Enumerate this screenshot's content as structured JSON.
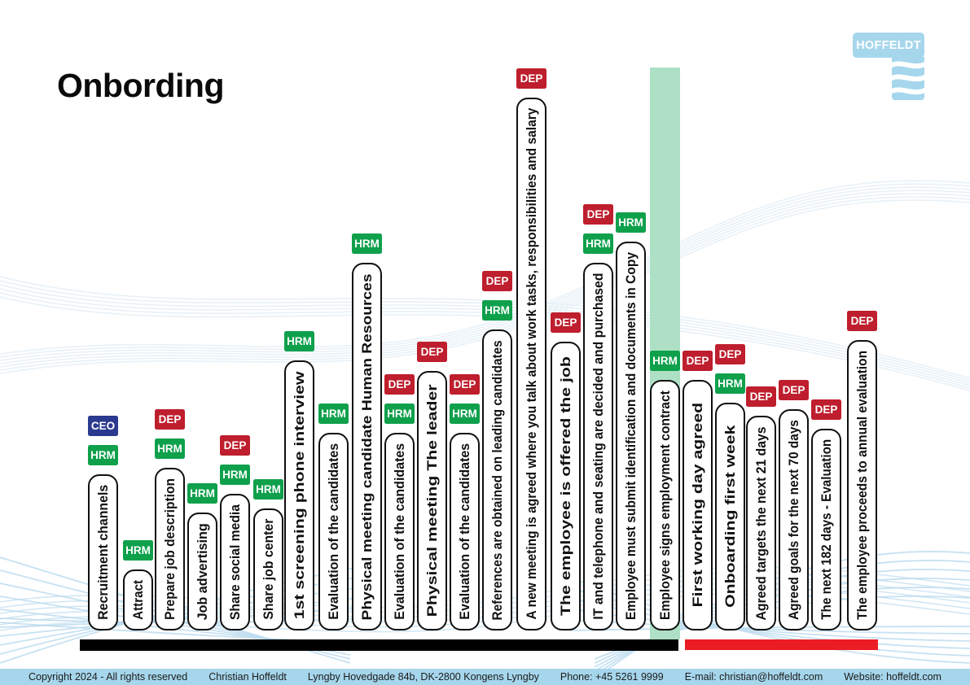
{
  "title": "Onbording",
  "logo": {
    "text": "HOFFELDT"
  },
  "colors": {
    "hrm": "#0FA04C",
    "dep": "#BE1E2D",
    "ceo": "#2B3A8F",
    "highlight_column": "#AEE0C6",
    "phase1_bar": "#000000",
    "phase2_bar": "#EC1C24",
    "brand_blue": "#A6D6EC"
  },
  "steps": [
    {
      "label": "Recruitment channels",
      "badges": [
        "CEO",
        "HRM"
      ],
      "highlight": false
    },
    {
      "label": "Attract",
      "badges": [
        "HRM"
      ],
      "highlight": false
    },
    {
      "label": "Prepare job description",
      "badges": [
        "DEP",
        "HRM"
      ],
      "highlight": false
    },
    {
      "label": "Job advertising",
      "badges": [
        "HRM"
      ],
      "highlight": false
    },
    {
      "label": "Share social media",
      "badges": [
        "DEP",
        "HRM"
      ],
      "highlight": false
    },
    {
      "label": "Share job center",
      "badges": [
        "HRM"
      ],
      "highlight": false
    },
    {
      "label": "1st screening phone interview",
      "badges": [
        "HRM"
      ],
      "highlight": false
    },
    {
      "label": "Evaluation of the candidates",
      "badges": [
        "HRM"
      ],
      "highlight": false
    },
    {
      "label": "Physical meeting candidate Human Resources",
      "badges": [
        "HRM"
      ],
      "highlight": false
    },
    {
      "label": "Evaluation of the candidates",
      "badges": [
        "DEP",
        "HRM"
      ],
      "highlight": false
    },
    {
      "label": "Physical meeting The leader",
      "badges": [
        "DEP"
      ],
      "highlight": false
    },
    {
      "label": "Evaluation of the candidates",
      "badges": [
        "DEP",
        "HRM"
      ],
      "highlight": false
    },
    {
      "label": "References are obtained on leading candidates",
      "badges": [
        "DEP",
        "HRM"
      ],
      "highlight": false
    },
    {
      "label": "A new meeting is agreed where you talk about work tasks, responsibilities and salary",
      "badges": [
        "DEP"
      ],
      "highlight": false
    },
    {
      "label": "The employee is offered the job",
      "badges": [
        "DEP"
      ],
      "highlight": false
    },
    {
      "label": "IT and telephone and seating are decided and purchased",
      "badges": [
        "DEP",
        "HRM"
      ],
      "highlight": false
    },
    {
      "label": "Employee must submit identification and documents in Copy",
      "badges": [
        "HRM"
      ],
      "highlight": false
    },
    {
      "label": "Employee signs employment contract",
      "badges": [
        "HRM"
      ],
      "highlight": true
    },
    {
      "label": "First working day agreed",
      "badges": [
        "DEP"
      ],
      "highlight": false
    },
    {
      "label": "Onboarding first week",
      "badges": [
        "DEP",
        "HRM"
      ],
      "highlight": false
    },
    {
      "label": "Agreed targets the next 21 days",
      "badges": [
        "DEP"
      ],
      "highlight": false
    },
    {
      "label": "Agreed goals for the next 70 days",
      "badges": [
        "DEP"
      ],
      "highlight": false
    },
    {
      "label": "The next 182 days - Evaluation",
      "badges": [
        "DEP"
      ],
      "highlight": false
    },
    {
      "label": "The employee proceeds to annual evaluation",
      "badges": [
        "DEP"
      ],
      "highlight": false
    }
  ],
  "footer": {
    "items": [
      "Copyright 2024 - All rights reserved",
      "Christian Hoffeldt",
      "Lyngby Hovedgade 84b,  DK-2800 Kongens Lyngby",
      "Phone: +45 5261 9999",
      "E-mail: christian@hoffeldt.com",
      "Website: hoffeldt.com"
    ]
  }
}
